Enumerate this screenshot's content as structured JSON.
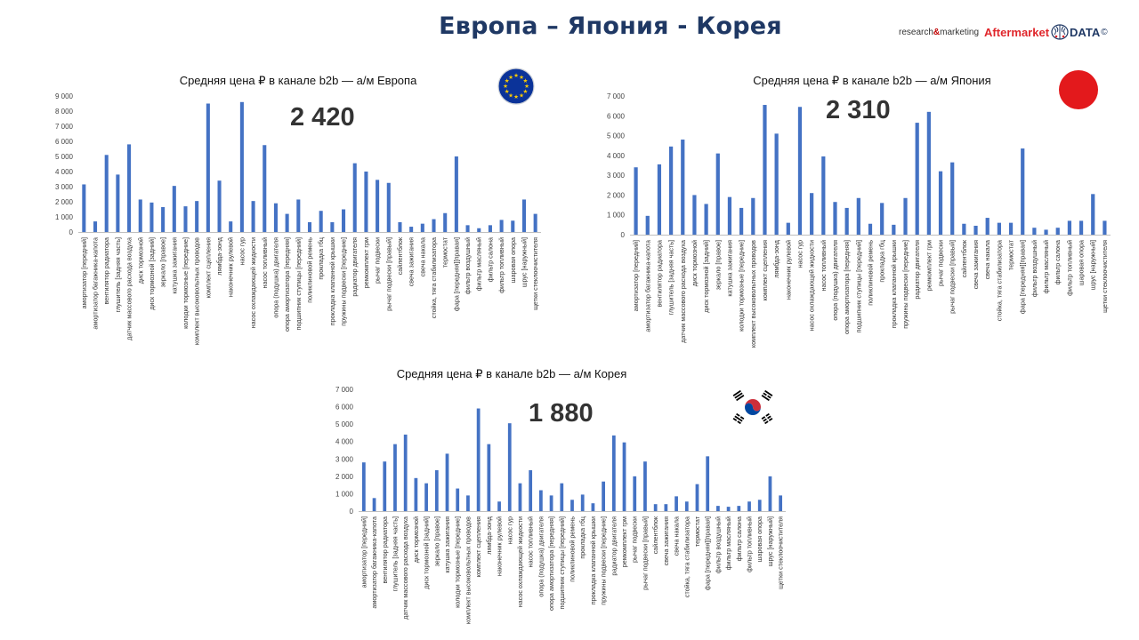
{
  "page": {
    "title": "Европа – Япония - Корея"
  },
  "brand": {
    "prefix": "research",
    "amp": "&",
    "suffix": "marketing",
    "name": "Aftermarket",
    "data": "DATA",
    "copy": "©"
  },
  "colors": {
    "bar": "#4472c4",
    "title": "#1f3864",
    "brand_red": "#e0262b",
    "eu_blue": "#0b3399",
    "eu_star": "#ffcc00",
    "jp_red": "#e3191c"
  },
  "flags": {
    "eu": "eu-flag-icon",
    "jp": "japan-flag-icon",
    "kr": "korea-flag-icon"
  },
  "chart_data": [
    {
      "type": "bar",
      "title": "Средняя цена ₽ в канале b2b — а/м Европа",
      "average_label": "2 420",
      "ylim": [
        0,
        9000
      ],
      "yticks": [
        "0",
        "1 000",
        "2 000",
        "3 000",
        "4 000",
        "5 000",
        "6 000",
        "7 000",
        "8 000",
        "9 000"
      ],
      "grid": false,
      "categories": [
        "амортизатор [передний]",
        "амортизатор багажника-капота",
        "вентилятор радиатора",
        "глушитель [задняя часть]",
        "датчик массового расхода воздуха",
        "диск тормозной",
        "диск тормозной [задний]",
        "зеркало [правое]",
        "катушка зажигания",
        "колодки тормозные [передние]",
        "комплект высоковольтных проводов",
        "комплект сцепления",
        "лямбда-зонд",
        "наконечник рулевой",
        "насос гур",
        "насос охлаждающей жидкости",
        "насос топливный",
        "опора (подушка) двигателя",
        "опора амортизатора [передняя]",
        "подшипник ступицы [передний]",
        "поликлиновой ремень",
        "прокладка гбц",
        "прокладка клапанной крышки",
        "пружины подвески [передние]",
        "радиатор двигателя",
        "ремкомплект грм",
        "рычаг подвески",
        "рычаг подвески [правый]",
        "сайлентблок",
        "свеча зажигания",
        "свеча накала",
        "стойка, тяга стабилизатора",
        "термостат",
        "фара [передняя][правая]",
        "фильтр воздушный",
        "фильтр масляный",
        "фильтр салона",
        "фильтр топливный",
        "шаровая опора",
        "шрус [наружный]",
        "щетки стеклоочистителя"
      ],
      "values": [
        3150,
        700,
        5100,
        3800,
        5800,
        2150,
        1950,
        1650,
        3050,
        1700,
        2050,
        8500,
        3400,
        700,
        8600,
        2050,
        5750,
        1900,
        1200,
        2150,
        650,
        1400,
        650,
        1500,
        4550,
        4000,
        3450,
        3250,
        650,
        350,
        550,
        850,
        1250,
        5000,
        450,
        250,
        450,
        800,
        750,
        2150,
        1200
      ]
    },
    {
      "type": "bar",
      "title": "Средняя цена ₽ в канале b2b — а/м Япония",
      "average_label": "2 310",
      "ylim": [
        0,
        7000
      ],
      "yticks": [
        "0",
        "1 000",
        "2 000",
        "3 000",
        "4 000",
        "5 000",
        "6 000",
        "7 000"
      ],
      "grid": false,
      "categories": [
        "амортизатор [передний]",
        "амортизатор багажника-капота",
        "вентилятор радиатора",
        "глушитель [задняя часть]",
        "датчик массового расхода воздуха",
        "диск тормозной",
        "диск тормозной [задний]",
        "зеркало [правое]",
        "катушка зажигания",
        "колодки тормозные [передние]",
        "комплект высоковольтных проводов",
        "комплект сцепления",
        "лямбда-зонд",
        "наконечник рулевой",
        "насос гур",
        "насос охлаждающей жидкости",
        "насос топливный",
        "опора (подушка) двигателя",
        "опора амортизатора [передняя]",
        "подшипник ступицы [передний]",
        "поликлиновой ремень",
        "прокладка гбц",
        "прокладка клапанной крышки",
        "пружины подвески [передние]",
        "радиатор двигателя",
        "ремкомплект грм",
        "рычаг подвески",
        "рычаг подвески [правый]",
        "сайлентблок",
        "свеча зажигания",
        "свеча накала",
        "стойка, тяга стабилизатора",
        "термостат",
        "фара [передняя][правая]",
        "фильтр воздушный",
        "фильтр масляный",
        "фильтр салона",
        "фильтр топливный",
        "шаровая опора",
        "шрус [наружный]",
        "щетки стеклоочистителя"
      ],
      "values": [
        3400,
        950,
        3550,
        4450,
        4800,
        2000,
        1550,
        4100,
        1900,
        1350,
        1850,
        6550,
        5100,
        600,
        6450,
        2100,
        3950,
        1650,
        1350,
        1850,
        550,
        1600,
        500,
        1850,
        5650,
        6200,
        3200,
        3650,
        550,
        450,
        850,
        600,
        600,
        4350,
        350,
        250,
        350,
        700,
        700,
        2050,
        700
      ]
    },
    {
      "type": "bar",
      "title": "Средняя цена ₽ в канале b2b — а/м Корея",
      "average_label": "1 880",
      "ylim": [
        0,
        7000
      ],
      "yticks": [
        "0",
        "1 000",
        "2 000",
        "3 000",
        "4 000",
        "5 000",
        "6 000",
        "7 000"
      ],
      "grid": false,
      "categories": [
        "амортизатор [передний]",
        "амортизатор багажника-капота",
        "вентилятор радиатора",
        "глушитель [задняя часть]",
        "датчик массового расхода воздуха",
        "диск тормозной",
        "диск тормозной [задний]",
        "зеркало [правое]",
        "катушка зажигания",
        "колодки тормозные [передние]",
        "комплект высоковольтных проводов",
        "комплект сцепления",
        "лямбда-зонд",
        "наконечник рулевой",
        "насос гур",
        "насос охлаждающей жидкости",
        "насос топливный",
        "опора (подушка) двигателя",
        "опора амортизатора [передняя]",
        "подшипник ступицы [передний]",
        "поликлиновой ремень",
        "прокладка гбц",
        "прокладка клапанной крышки",
        "пружины подвески [передние]",
        "радиатор двигателя",
        "ремкомплект грм",
        "рычаг подвески",
        "рычаг подвески [правый]",
        "сайлентблок",
        "свеча зажигания",
        "свеча накала",
        "стойка, тяга стабилизатора",
        "термостат",
        "фара [передняя][правая]",
        "фильтр воздушный",
        "фильтр масляный",
        "фильтр салона",
        "фильтр топливный",
        "шаровая опора",
        "шрус [наружный]",
        "щетки стеклоочистителя"
      ],
      "values": [
        2800,
        750,
        2850,
        3850,
        4400,
        1900,
        1600,
        2350,
        3300,
        1300,
        900,
        5900,
        3850,
        550,
        5050,
        1600,
        2350,
        1200,
        900,
        1600,
        650,
        950,
        450,
        1700,
        4350,
        3950,
        2000,
        2850,
        400,
        400,
        850,
        550,
        1550,
        3150,
        300,
        250,
        300,
        550,
        650,
        2000,
        900
      ]
    }
  ]
}
